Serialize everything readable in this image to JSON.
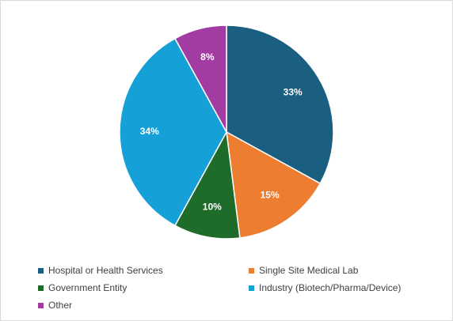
{
  "chart_data": {
    "type": "pie",
    "title": "",
    "slices": [
      {
        "name": "Hospital or Health Services",
        "value": 33,
        "label": "33%",
        "color": "#1a5e80"
      },
      {
        "name": "Single Site Medical Lab",
        "value": 15,
        "label": "15%",
        "color": "#ed7d31"
      },
      {
        "name": "Government Entity",
        "value": 10,
        "label": "10%",
        "color": "#1e6b2a"
      },
      {
        "name": "Industry (Biotech/Pharma/Device)",
        "value": 34,
        "label": "34%",
        "color": "#16a0d8"
      },
      {
        "name": "Other",
        "value": 8,
        "label": "8%",
        "color": "#a23ca2"
      }
    ],
    "legend_position": "bottom",
    "start_angle": "12 o'clock",
    "direction": "clockwise"
  }
}
